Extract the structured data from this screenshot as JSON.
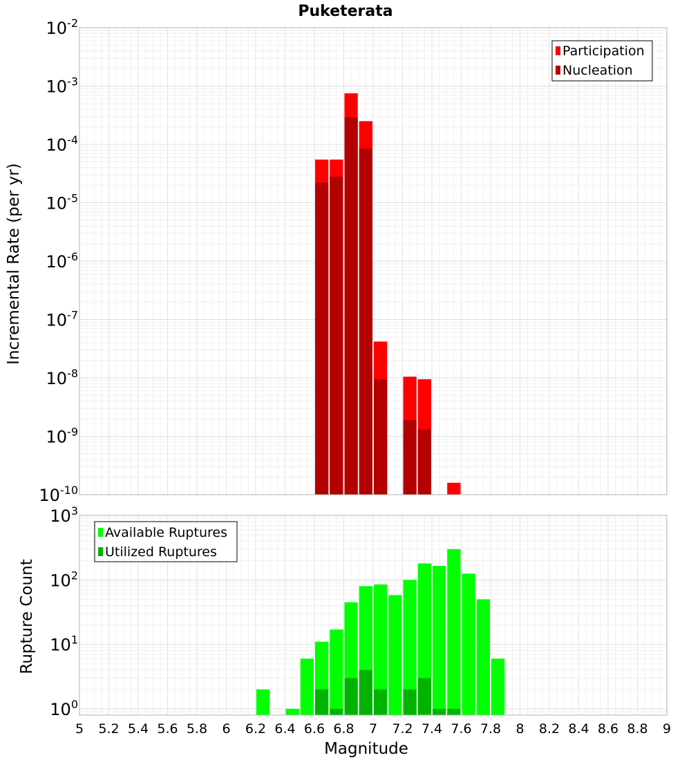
{
  "chart_data": [
    {
      "type": "bar",
      "title": "Puketerata",
      "ylabel": "Incremental Rate (per yr)",
      "xlabel": "",
      "y_scale": "log",
      "ylim": [
        1e-10,
        0.01
      ],
      "xlim": [
        5,
        9
      ],
      "grid": true,
      "legend_position": "top-right",
      "y_tick_exponents": [
        "-2",
        "-3",
        "-4",
        "-5",
        "-6",
        "-7",
        "-8",
        "-9",
        "-10"
      ],
      "y_tick_base": "10",
      "series": [
        {
          "name": "Participation",
          "color": "#ff0000",
          "x": [
            6.65,
            6.75,
            6.85,
            6.95,
            7.05,
            7.25,
            7.35,
            7.55
          ],
          "values": [
            5.5e-05,
            5.5e-05,
            0.00075,
            0.00025,
            4.2e-08,
            1.05e-08,
            9.5e-09,
            1.6e-10
          ]
        },
        {
          "name": "Nucleation",
          "color": "#b30000",
          "x": [
            6.65,
            6.75,
            6.85,
            6.95,
            7.05,
            7.25,
            7.35
          ],
          "values": [
            2.2e-05,
            2.8e-05,
            0.00029,
            8.5e-05,
            9.5e-09,
            1.9e-09,
            1.3e-09
          ]
        }
      ]
    },
    {
      "type": "bar",
      "title": "",
      "ylabel": "Rupture Count",
      "xlabel": "Magnitude",
      "y_scale": "log",
      "ylim": [
        0.8,
        1000
      ],
      "xlim": [
        5,
        9
      ],
      "grid": true,
      "legend_position": "top-left",
      "y_tick_exponents": [
        "3",
        "2",
        "1",
        "0"
      ],
      "y_tick_base": "10",
      "x_ticks": [
        "5",
        "5.2",
        "5.4",
        "5.6",
        "5.8",
        "6",
        "6.2",
        "6.4",
        "6.6",
        "6.8",
        "7",
        "7.2",
        "7.4",
        "7.6",
        "7.8",
        "8",
        "8.2",
        "8.4",
        "8.6",
        "8.8",
        "9"
      ],
      "series": [
        {
          "name": "Available Ruptures",
          "color": "#00ff00",
          "x": [
            6.25,
            6.45,
            6.55,
            6.65,
            6.75,
            6.85,
            6.95,
            7.05,
            7.15,
            7.25,
            7.35,
            7.45,
            7.55,
            7.65,
            7.75,
            7.85
          ],
          "values": [
            2,
            1,
            6,
            11,
            17,
            45,
            80,
            85,
            58,
            100,
            180,
            165,
            300,
            125,
            50,
            6
          ]
        },
        {
          "name": "Utilized Ruptures",
          "color": "#00b300",
          "x": [
            6.65,
            6.75,
            6.85,
            6.95,
            7.05,
            7.25,
            7.35,
            7.45,
            7.55
          ],
          "values": [
            2,
            1,
            3,
            4,
            2,
            2,
            3,
            1,
            1
          ]
        }
      ]
    }
  ]
}
